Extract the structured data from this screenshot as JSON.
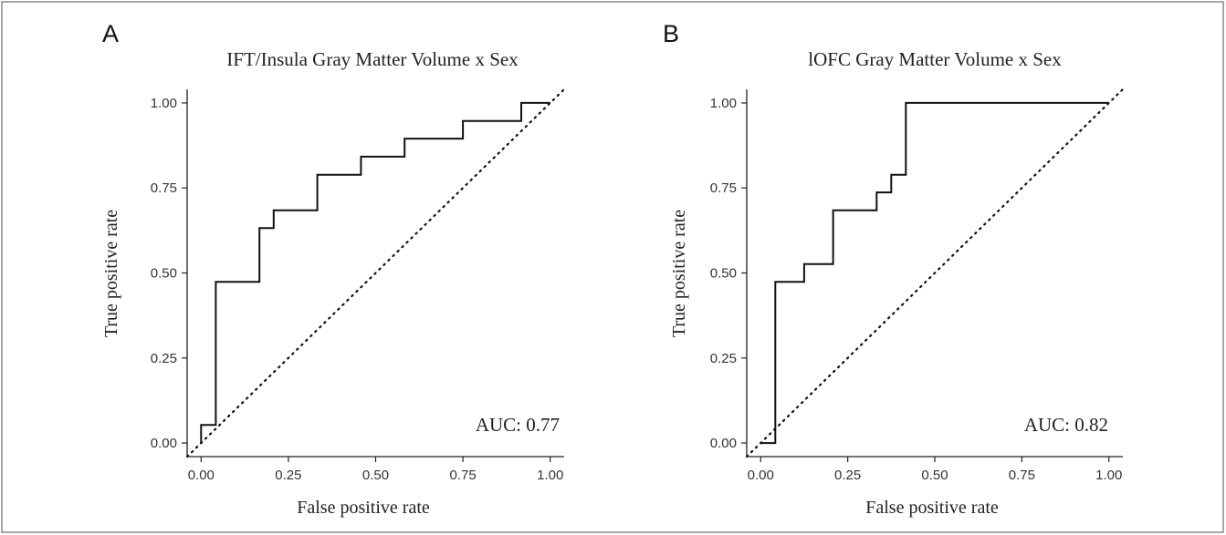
{
  "chart_data": [
    {
      "type": "line",
      "panel_label": "A",
      "title": "IFT/Insula Gray Matter Volume x Sex",
      "xlabel": "False positive rate",
      "ylabel": "True positive rate",
      "xlim": [
        -0.04,
        1.04
      ],
      "ylim": [
        -0.04,
        1.04
      ],
      "xticks": [
        0,
        0.25,
        0.5,
        0.75,
        1
      ],
      "xtick_labels": [
        "0.00",
        "0.25",
        "0.50",
        "0.75",
        "1.00"
      ],
      "yticks": [
        0,
        0.25,
        0.5,
        0.75,
        1
      ],
      "ytick_labels": [
        "0.00",
        "0.25",
        "0.50",
        "0.75",
        "1.00"
      ],
      "grid": false,
      "series": [
        {
          "x": [
            0,
            0,
            0.042,
            0.042,
            0.042,
            0.167,
            0.167,
            0.208,
            0.208,
            0.333,
            0.333,
            0.458,
            0.458,
            0.583,
            0.583,
            0.75,
            0.75,
            0.917,
            0.917,
            1
          ],
          "y": [
            0,
            0.053,
            0.053,
            0.105,
            0.474,
            0.474,
            0.632,
            0.632,
            0.684,
            0.684,
            0.789,
            0.789,
            0.842,
            0.842,
            0.895,
            0.895,
            0.947,
            0.947,
            1,
            1
          ]
        }
      ],
      "reference_line": {
        "x": [
          -0.04,
          1.04
        ],
        "y": [
          -0.04,
          1.04
        ],
        "style": "dotted"
      },
      "annotation": "AUC: 0.77"
    },
    {
      "type": "line",
      "panel_label": "B",
      "title": "lOFC Gray Matter Volume x Sex",
      "xlabel": "False positive rate",
      "ylabel": "True positive rate",
      "xlim": [
        -0.04,
        1.04
      ],
      "ylim": [
        -0.04,
        1.04
      ],
      "xticks": [
        0,
        0.25,
        0.5,
        0.75,
        1
      ],
      "xtick_labels": [
        "0.00",
        "0.25",
        "0.50",
        "0.75",
        "1.00"
      ],
      "yticks": [
        0,
        0.25,
        0.5,
        0.75,
        1
      ],
      "ytick_labels": [
        "0.00",
        "0.25",
        "0.50",
        "0.75",
        "1.00"
      ],
      "grid": false,
      "series": [
        {
          "x": [
            0,
            0.042,
            0.042,
            0.125,
            0.125,
            0.208,
            0.208,
            0.333,
            0.333,
            0.375,
            0.375,
            0.417,
            0.417,
            1
          ],
          "y": [
            0,
            0,
            0.474,
            0.474,
            0.526,
            0.526,
            0.684,
            0.684,
            0.737,
            0.737,
            0.789,
            0.789,
            1,
            1
          ]
        }
      ],
      "reference_line": {
        "x": [
          -0.04,
          1.04
        ],
        "y": [
          -0.04,
          1.04
        ],
        "style": "dotted"
      },
      "annotation": "AUC: 0.82"
    }
  ]
}
